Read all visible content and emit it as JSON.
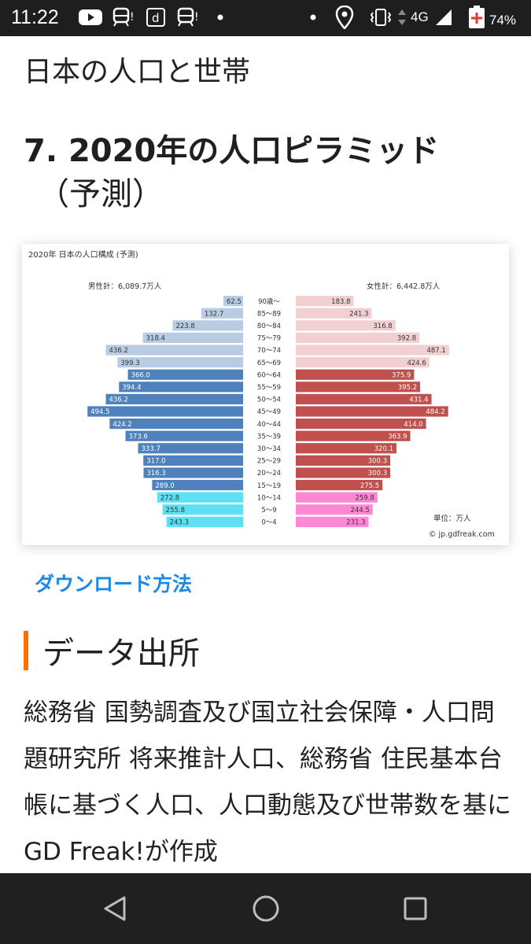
{
  "status_bar": {
    "time": "11:22",
    "network": "4G",
    "battery": "74%"
  },
  "page": {
    "title": "日本の人口と世帯",
    "section_title_line1": "7. 2020年の人口ピラミッド",
    "section_title_line2": "（予測）",
    "download_link": "ダウンロード方法",
    "source_heading": "データ出所",
    "source_text": "総務省 国勢調査及び国立社会保障・人口問題研究所 将来推計人口、総務省 住民基本台帳に基づく人口、人口動態及び世帯数を基にGD Freak!が作成"
  },
  "colors": {
    "accent_orange": "#ff6f00",
    "link_blue": "#1e88e5",
    "male_light": "#b8cce4",
    "male_mid": "#4f81bd",
    "male_young": "#5ce1f4",
    "female_light": "#f2cfd1",
    "female_mid": "#c0504d",
    "female_young": "#ff88d6"
  },
  "chart_data": {
    "type": "bar",
    "title": "2020年 日本の人口構成 (予測)",
    "male_total_label": "男性計：6,089.7万人",
    "female_total_label": "女性計：6,442.8万人",
    "unit_label": "単位：万人",
    "credit": "© jp.gdfreak.com",
    "categories": [
      "90歳～",
      "85～89",
      "80～84",
      "75～79",
      "70～74",
      "65～69",
      "60～64",
      "55～59",
      "50～54",
      "45～49",
      "40～44",
      "35～39",
      "30～34",
      "25～29",
      "20～24",
      "15～19",
      "10～14",
      "5～9",
      "0～4"
    ],
    "series": [
      {
        "name": "男性",
        "values": [
          62.5,
          132.7,
          223.8,
          318.4,
          436.2,
          399.3,
          366.0,
          394.4,
          436.2,
          494.5,
          424.2,
          373.6,
          333.7,
          317.0,
          316.3,
          289.0,
          272.8,
          255.8,
          243.3
        ]
      },
      {
        "name": "女性",
        "values": [
          183.8,
          241.3,
          316.8,
          392.8,
          487.1,
          424.6,
          375.9,
          395.2,
          431.4,
          484.2,
          414.0,
          363.9,
          320.1,
          300.3,
          300.3,
          275.5,
          259.8,
          244.5,
          231.3
        ]
      }
    ],
    "xlim": [
      0,
      500
    ]
  }
}
